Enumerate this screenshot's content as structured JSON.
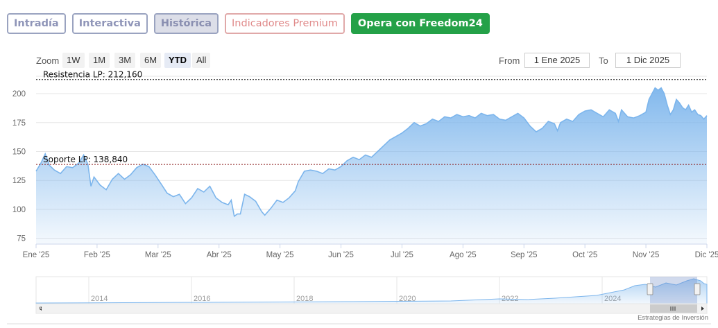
{
  "tabs": [
    {
      "label": "Intradía"
    },
    {
      "label": "Interactiva"
    },
    {
      "label": "Histórica"
    },
    {
      "label": "Indicadores Premium"
    },
    {
      "label": "Opera con Freedom24"
    }
  ],
  "range_selector": {
    "zoom_label": "Zoom",
    "buttons": [
      "1W",
      "1M",
      "3M",
      "6M",
      "YTD",
      "All"
    ],
    "selected": "YTD",
    "from_label": "From",
    "from_value": "1 Ene 2025",
    "to_label": "To",
    "to_value": "1 Dic 2025"
  },
  "colors": {
    "line": "#7cb5ec",
    "area_top": "#7cb5ec",
    "resistance_line": "#111111",
    "support_line": "#8b1a1a",
    "cta": "#24a148"
  },
  "chart_data": {
    "type": "area",
    "title": "",
    "xlabel": "",
    "ylabel": "",
    "ylim": [
      70,
      215
    ],
    "yticks": [
      75,
      100,
      125,
      150,
      175,
      200
    ],
    "xticks": [
      "Ene '25",
      "Feb '25",
      "Mar '25",
      "Abr '25",
      "May '25",
      "Jun '25",
      "Jul '25",
      "Ago '25",
      "Sep '25",
      "Oct '25",
      "Nov '25",
      "Dic '25"
    ],
    "grid": true,
    "series": [
      {
        "values": [
          [
            0,
            133
          ],
          [
            0.08,
            140
          ],
          [
            0.15,
            148
          ],
          [
            0.22,
            138
          ],
          [
            0.3,
            134
          ],
          [
            0.4,
            131
          ],
          [
            0.5,
            137
          ],
          [
            0.6,
            136
          ],
          [
            0.7,
            140
          ],
          [
            0.78,
            147
          ],
          [
            0.85,
            139
          ],
          [
            0.9,
            120
          ],
          [
            0.95,
            128
          ],
          [
            1.05,
            121
          ],
          [
            1.15,
            117
          ],
          [
            1.25,
            126
          ],
          [
            1.35,
            131
          ],
          [
            1.45,
            126
          ],
          [
            1.55,
            130
          ],
          [
            1.65,
            136
          ],
          [
            1.75,
            139
          ],
          [
            1.85,
            137
          ],
          [
            1.95,
            130
          ],
          [
            2.05,
            122
          ],
          [
            2.15,
            114
          ],
          [
            2.25,
            111
          ],
          [
            2.35,
            113
          ],
          [
            2.45,
            105
          ],
          [
            2.55,
            110
          ],
          [
            2.65,
            118
          ],
          [
            2.75,
            115
          ],
          [
            2.85,
            120
          ],
          [
            2.95,
            110
          ],
          [
            3.05,
            106
          ],
          [
            3.15,
            104
          ],
          [
            3.2,
            108
          ],
          [
            3.25,
            94
          ],
          [
            3.3,
            96
          ],
          [
            3.35,
            96
          ],
          [
            3.42,
            113
          ],
          [
            3.5,
            111
          ],
          [
            3.6,
            107
          ],
          [
            3.7,
            98
          ],
          [
            3.75,
            95
          ],
          [
            3.85,
            101
          ],
          [
            3.95,
            108
          ],
          [
            4.05,
            106
          ],
          [
            4.15,
            110
          ],
          [
            4.25,
            116
          ],
          [
            4.3,
            124
          ],
          [
            4.4,
            133
          ],
          [
            4.5,
            134
          ],
          [
            4.6,
            133
          ],
          [
            4.7,
            131
          ],
          [
            4.8,
            135
          ],
          [
            4.9,
            134
          ],
          [
            5.0,
            137
          ],
          [
            5.1,
            142
          ],
          [
            5.2,
            145
          ],
          [
            5.3,
            143
          ],
          [
            5.4,
            147
          ],
          [
            5.5,
            145
          ],
          [
            5.6,
            150
          ],
          [
            5.7,
            155
          ],
          [
            5.8,
            160
          ],
          [
            5.9,
            163
          ],
          [
            6.0,
            166
          ],
          [
            6.1,
            170
          ],
          [
            6.2,
            175
          ],
          [
            6.3,
            172
          ],
          [
            6.4,
            174
          ],
          [
            6.5,
            178
          ],
          [
            6.6,
            176
          ],
          [
            6.7,
            180
          ],
          [
            6.8,
            179
          ],
          [
            6.9,
            182
          ],
          [
            7.0,
            180
          ],
          [
            7.1,
            181
          ],
          [
            7.2,
            179
          ],
          [
            7.3,
            183
          ],
          [
            7.4,
            181
          ],
          [
            7.5,
            182
          ],
          [
            7.6,
            178
          ],
          [
            7.7,
            177
          ],
          [
            7.8,
            180
          ],
          [
            7.9,
            183
          ],
          [
            8.0,
            179
          ],
          [
            8.1,
            172
          ],
          [
            8.2,
            167
          ],
          [
            8.3,
            170
          ],
          [
            8.4,
            176
          ],
          [
            8.5,
            174
          ],
          [
            8.55,
            168
          ],
          [
            8.6,
            175
          ],
          [
            8.7,
            178
          ],
          [
            8.8,
            176
          ],
          [
            8.9,
            182
          ],
          [
            9.0,
            185
          ],
          [
            9.1,
            186
          ],
          [
            9.2,
            183
          ],
          [
            9.3,
            180
          ],
          [
            9.4,
            186
          ],
          [
            9.5,
            183
          ],
          [
            9.55,
            176
          ],
          [
            9.6,
            186
          ],
          [
            9.7,
            180
          ],
          [
            9.8,
            179
          ],
          [
            9.9,
            181
          ],
          [
            10.0,
            184
          ],
          [
            10.05,
            195
          ],
          [
            10.1,
            200
          ],
          [
            10.15,
            205
          ],
          [
            10.2,
            203
          ],
          [
            10.25,
            205
          ],
          [
            10.3,
            200
          ],
          [
            10.35,
            190
          ],
          [
            10.4,
            182
          ],
          [
            10.45,
            186
          ],
          [
            10.5,
            195
          ],
          [
            10.55,
            192
          ],
          [
            10.6,
            188
          ],
          [
            10.65,
            186
          ],
          [
            10.7,
            190
          ],
          [
            10.75,
            184
          ],
          [
            10.8,
            186
          ],
          [
            10.85,
            182
          ],
          [
            10.9,
            181
          ],
          [
            10.95,
            178
          ],
          [
            11.0,
            181
          ]
        ]
      }
    ],
    "annotations": [
      {
        "label": "Resistencia LP: 212,160",
        "y": 212.16
      },
      {
        "label": "Soporte LP: 138,840",
        "y": 138.84
      }
    ],
    "navigator": {
      "xticks": [
        "2014",
        "2016",
        "2018",
        "2020",
        "2022",
        "2024"
      ]
    }
  },
  "footer": {
    "credit": "Estrategias de Inversión"
  }
}
